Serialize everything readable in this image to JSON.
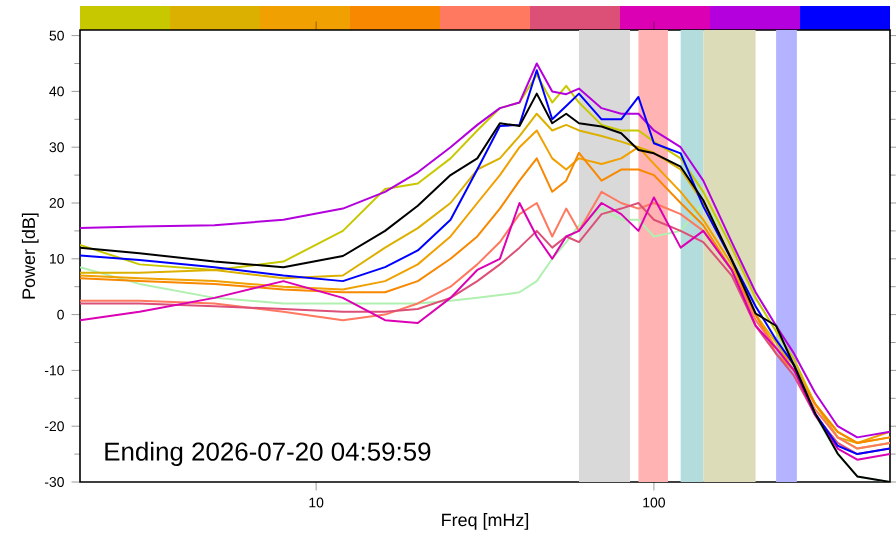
{
  "chart_data": {
    "type": "line",
    "xlabel": "Freq [mHz]",
    "ylabel": "Power [dB]",
    "log": "x",
    "grid": false,
    "legend": false,
    "marker": "none",
    "line_style": "solid",
    "xlim": [
      2,
      500
    ],
    "xticks": [
      10,
      100
    ],
    "ylim": [
      -30,
      51
    ],
    "yticks": [
      -30,
      -20,
      -10,
      0,
      10,
      20,
      30,
      40,
      50
    ],
    "x": [
      2,
      3,
      5,
      8,
      12,
      16,
      20,
      25,
      30,
      35,
      40,
      45,
      50,
      55,
      60,
      70,
      80,
      90,
      100,
      120,
      140,
      170,
      200,
      230,
      260,
      300,
      350,
      400,
      500
    ],
    "bands": [
      {
        "axis": "x",
        "from": 60,
        "to": 85,
        "color": "#d9d9d9"
      },
      {
        "axis": "x",
        "from": 90,
        "to": 110,
        "color": "#ffb3b3"
      },
      {
        "axis": "x",
        "from": 120,
        "to": 140,
        "color": "#b3dcdc"
      },
      {
        "axis": "x",
        "from": 140,
        "to": 200,
        "color": "#dcdcb8"
      },
      {
        "axis": "x",
        "from": 230,
        "to": 265,
        "color": "#b3b3ff"
      }
    ],
    "annotations": [
      "Ending 2026-07-20 04:59:59"
    ],
    "series": [
      {
        "color": "#b0f0b0",
        "values": [
          8.5,
          5.5,
          3,
          2,
          2,
          2,
          2,
          2.5,
          3,
          3.5,
          4,
          6,
          10,
          13,
          16,
          19,
          17,
          17,
          14,
          15,
          20,
          13,
          3,
          -3,
          -10,
          -18,
          -25,
          -29,
          -30
        ]
      },
      {
        "color": "#c8c800",
        "values": [
          12.5,
          9,
          8,
          9.5,
          15,
          22.5,
          23.5,
          28,
          33,
          37,
          38,
          43,
          38,
          41,
          38,
          34,
          33,
          33,
          31,
          28,
          22,
          12,
          3,
          -3,
          -8,
          -16,
          -22,
          -24,
          -23
        ]
      },
      {
        "color": "#dcb000",
        "values": [
          7.5,
          7.5,
          8,
          6.5,
          7,
          12,
          15.5,
          20,
          26,
          28,
          32,
          36,
          33,
          34,
          33,
          32,
          31,
          30,
          29,
          26,
          20,
          10,
          0,
          -5,
          -9,
          -16,
          -22,
          -23,
          -22
        ]
      },
      {
        "color": "#f0a000",
        "values": [
          7,
          6.5,
          6,
          5,
          4.5,
          6,
          9,
          14,
          20,
          25,
          30,
          33,
          28,
          26,
          28,
          27,
          28,
          30,
          27,
          22,
          17,
          9,
          0,
          -6,
          -9,
          -16,
          -21,
          -23,
          -21
        ]
      },
      {
        "color": "#f88800",
        "values": [
          6.5,
          6,
          5.5,
          4.5,
          4,
          4,
          6,
          10,
          14,
          19,
          24,
          28,
          22,
          24,
          29,
          24,
          26,
          26,
          25,
          20,
          16,
          8,
          0,
          -7,
          -10,
          -16,
          -21,
          -23,
          -22
        ]
      },
      {
        "color": "#ff7860",
        "values": [
          2.5,
          2.5,
          2,
          0.5,
          -1,
          0,
          2,
          5,
          9,
          13,
          18,
          20,
          14,
          19,
          15,
          22,
          20,
          19,
          20,
          18,
          15,
          8,
          -1,
          -6,
          -10,
          -17,
          -22,
          -24,
          -23
        ]
      },
      {
        "color": "#dc5078",
        "values": [
          2,
          2,
          1.5,
          1,
          0.5,
          0.5,
          1,
          3,
          6,
          9,
          12,
          15,
          12,
          14,
          13,
          18,
          19,
          20,
          17,
          15,
          13,
          7,
          -2,
          -7,
          -11,
          -18,
          -23,
          -25,
          -24
        ]
      },
      {
        "color": "#dc00b4",
        "values": [
          -1,
          0.5,
          3,
          6,
          3,
          -1,
          -1.5,
          3,
          8,
          10,
          20,
          14,
          10,
          14,
          15,
          20,
          18,
          15,
          21,
          12,
          15,
          8,
          -2,
          -6,
          -10,
          -18,
          -24,
          -26,
          -25
        ]
      },
      {
        "color": "#b400dc",
        "values": [
          15.5,
          15.8,
          16,
          17,
          19,
          22,
          25.5,
          30,
          34,
          37,
          38,
          45,
          40,
          39.5,
          40.5,
          37,
          36,
          36,
          33,
          30,
          24,
          13,
          4,
          -2,
          -7,
          -14,
          -20,
          -22,
          -21
        ]
      },
      {
        "color": "#0000ff",
        "values": [
          10.6,
          9.8,
          8.5,
          7,
          6,
          8.5,
          11.5,
          17,
          26,
          33.8,
          34,
          43.8,
          35,
          37.4,
          39.6,
          35,
          35,
          39,
          30.7,
          28.9,
          19.4,
          9.8,
          1.5,
          -4.5,
          -9,
          -17.7,
          -23.5,
          -25,
          -24
        ]
      },
      {
        "color": "#000000",
        "values": [
          12,
          11,
          9.5,
          8.5,
          10.5,
          15,
          19.5,
          25,
          28,
          34.3,
          33.8,
          39.6,
          34.3,
          36,
          34.3,
          33.7,
          32.5,
          29.5,
          28.9,
          26.5,
          20.5,
          9.8,
          0.2,
          -2,
          -9.2,
          -17.7,
          -24.9,
          -29,
          -30
        ]
      }
    ]
  }
}
